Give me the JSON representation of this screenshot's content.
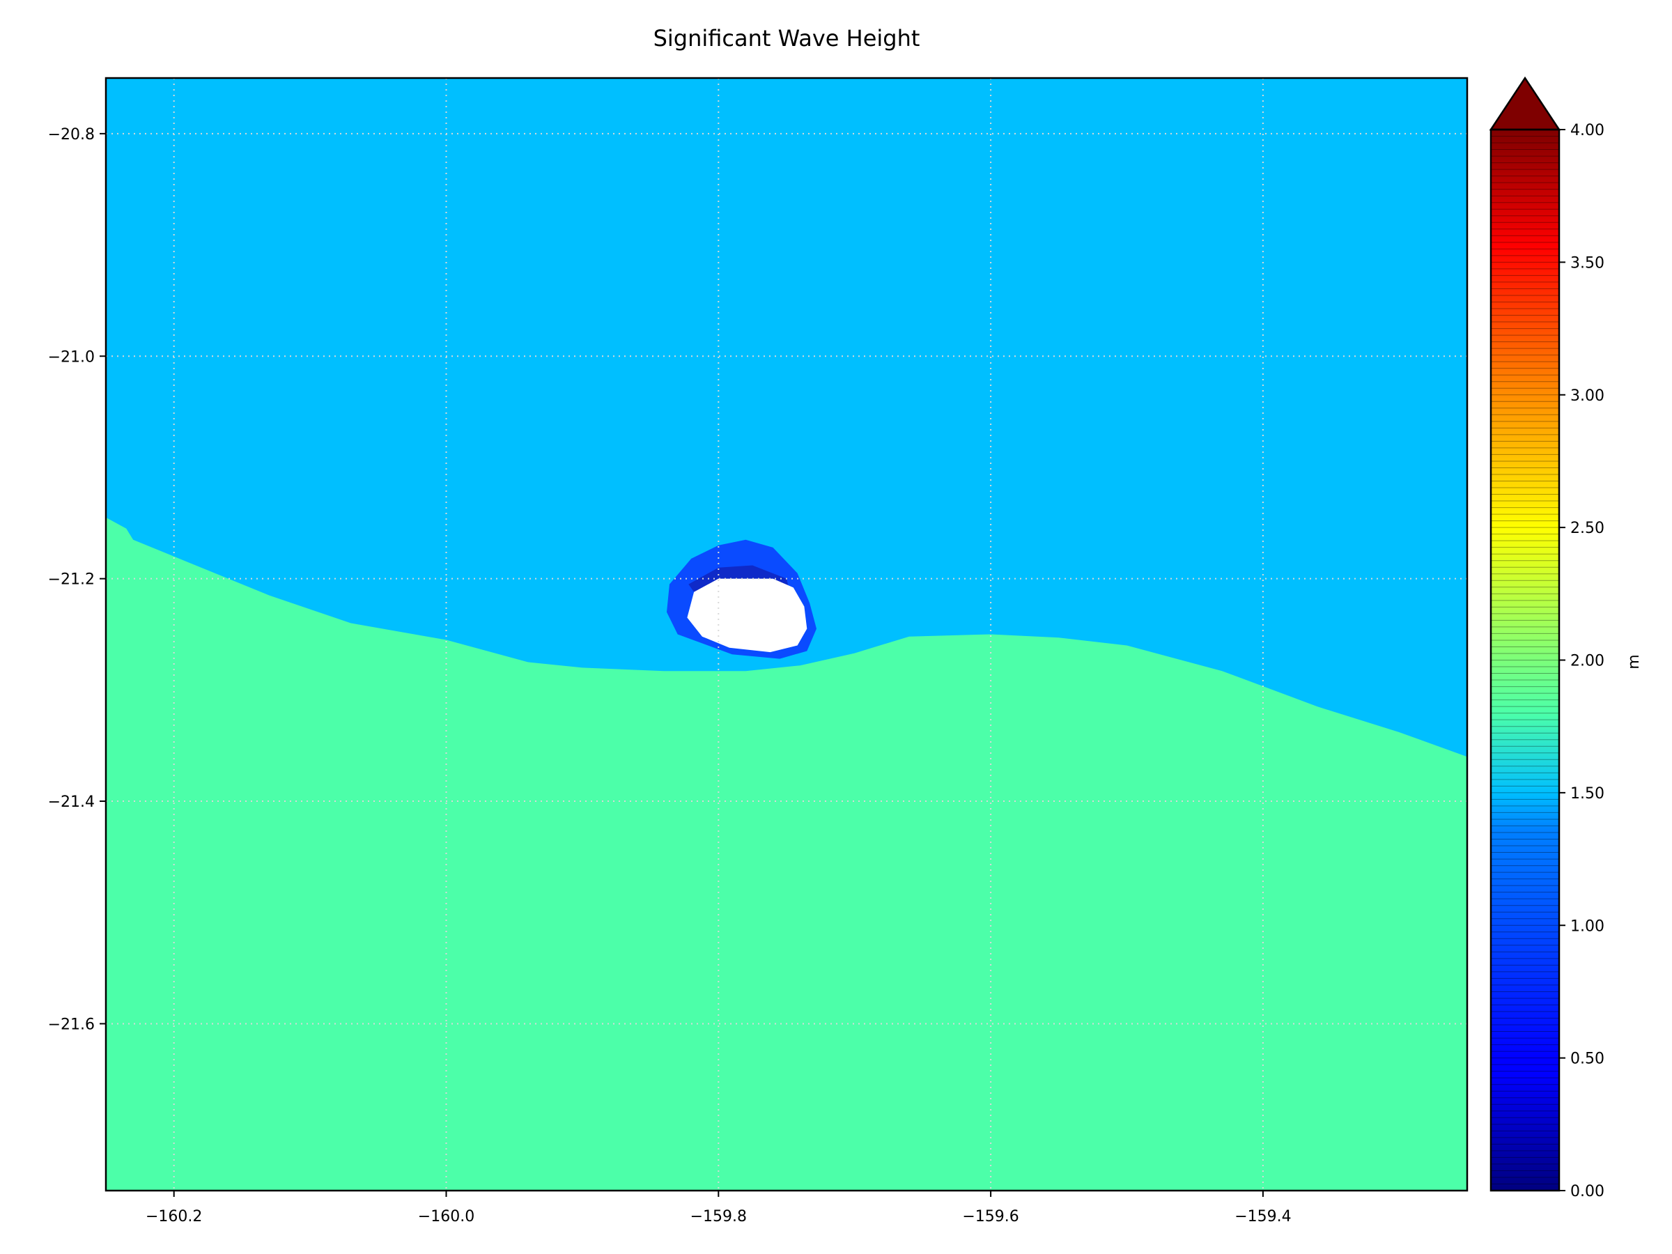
{
  "chart_data": {
    "type": "heatmap",
    "title": "Significant Wave Height",
    "xlabel": "",
    "ylabel": "",
    "xlim": [
      -160.25,
      -159.25
    ],
    "ylim": [
      -21.75,
      -20.75
    ],
    "xticks": [
      -160.2,
      -160.0,
      -159.8,
      -159.6,
      -159.4
    ],
    "xtick_labels": [
      "−160.2",
      "−160.0",
      "−159.8",
      "−159.6",
      "−159.4"
    ],
    "yticks": [
      -20.8,
      -21.0,
      -21.2,
      -21.4,
      -21.6
    ],
    "ytick_labels": [
      "−20.8",
      "−21.0",
      "−21.2",
      "−21.4",
      "−21.6"
    ],
    "grid": true,
    "colormap": "jet",
    "colorbar": {
      "label": "m",
      "min": 0.0,
      "max": 4.0,
      "extend": "max",
      "ticks": [
        0.0,
        0.5,
        1.0,
        1.5,
        2.0,
        2.5,
        3.0,
        3.5,
        4.0
      ],
      "tick_labels": [
        "0.00",
        "0.50",
        "1.00",
        "1.50",
        "2.00",
        "2.50",
        "3.00",
        "3.50",
        "4.00"
      ]
    },
    "regions": [
      {
        "name": "northern-sea",
        "value_m": 1.1,
        "color": "#00bfff",
        "boundary_south": [
          [
            -160.25,
            -21.145
          ],
          [
            -160.235,
            -21.155
          ],
          [
            -160.23,
            -21.165
          ],
          [
            -160.19,
            -21.185
          ],
          [
            -160.13,
            -21.215
          ],
          [
            -160.07,
            -21.24
          ],
          [
            -160.0,
            -21.255
          ],
          [
            -159.94,
            -21.275
          ],
          [
            -159.9,
            -21.28
          ],
          [
            -159.84,
            -21.283
          ],
          [
            -159.78,
            -21.283
          ],
          [
            -159.74,
            -21.278
          ],
          [
            -159.7,
            -21.267
          ],
          [
            -159.66,
            -21.252
          ],
          [
            -159.6,
            -21.25
          ],
          [
            -159.55,
            -21.253
          ],
          [
            -159.5,
            -21.26
          ],
          [
            -159.43,
            -21.283
          ],
          [
            -159.36,
            -21.315
          ],
          [
            -159.3,
            -21.338
          ],
          [
            -159.25,
            -21.36
          ]
        ]
      },
      {
        "name": "southern-sea",
        "value_m": 1.8,
        "color": "#4cffa9"
      },
      {
        "name": "lee-shelter-zone",
        "value_m": 0.7,
        "color": "#0a4bff",
        "outline": [
          [
            -159.836,
            -21.205
          ],
          [
            -159.82,
            -21.182
          ],
          [
            -159.8,
            -21.17
          ],
          [
            -159.78,
            -21.165
          ],
          [
            -159.76,
            -21.172
          ],
          [
            -159.742,
            -21.195
          ],
          [
            -159.733,
            -21.222
          ],
          [
            -159.728,
            -21.245
          ],
          [
            -159.735,
            -21.265
          ],
          [
            -159.755,
            -21.272
          ],
          [
            -159.79,
            -21.268
          ],
          [
            -159.83,
            -21.25
          ],
          [
            -159.838,
            -21.23
          ]
        ]
      },
      {
        "name": "deep-shelter-zone",
        "value_m": 0.35,
        "color": "#0f2ac8",
        "outline": [
          [
            -159.822,
            -21.205
          ],
          [
            -159.8,
            -21.19
          ],
          [
            -159.775,
            -21.188
          ],
          [
            -159.75,
            -21.2
          ],
          [
            -159.748,
            -21.21
          ],
          [
            -159.77,
            -21.206
          ],
          [
            -159.8,
            -21.204
          ],
          [
            -159.818,
            -21.212
          ]
        ]
      },
      {
        "name": "island-land-mask",
        "value_m": null,
        "color": "#ffffff",
        "outline": [
          [
            -159.818,
            -21.212
          ],
          [
            -159.8,
            -21.2
          ],
          [
            -159.78,
            -21.2
          ],
          [
            -159.76,
            -21.2
          ],
          [
            -159.745,
            -21.208
          ],
          [
            -159.737,
            -21.225
          ],
          [
            -159.735,
            -21.245
          ],
          [
            -159.742,
            -21.26
          ],
          [
            -159.762,
            -21.266
          ],
          [
            -159.792,
            -21.262
          ],
          [
            -159.812,
            -21.252
          ],
          [
            -159.823,
            -21.235
          ]
        ]
      }
    ]
  }
}
